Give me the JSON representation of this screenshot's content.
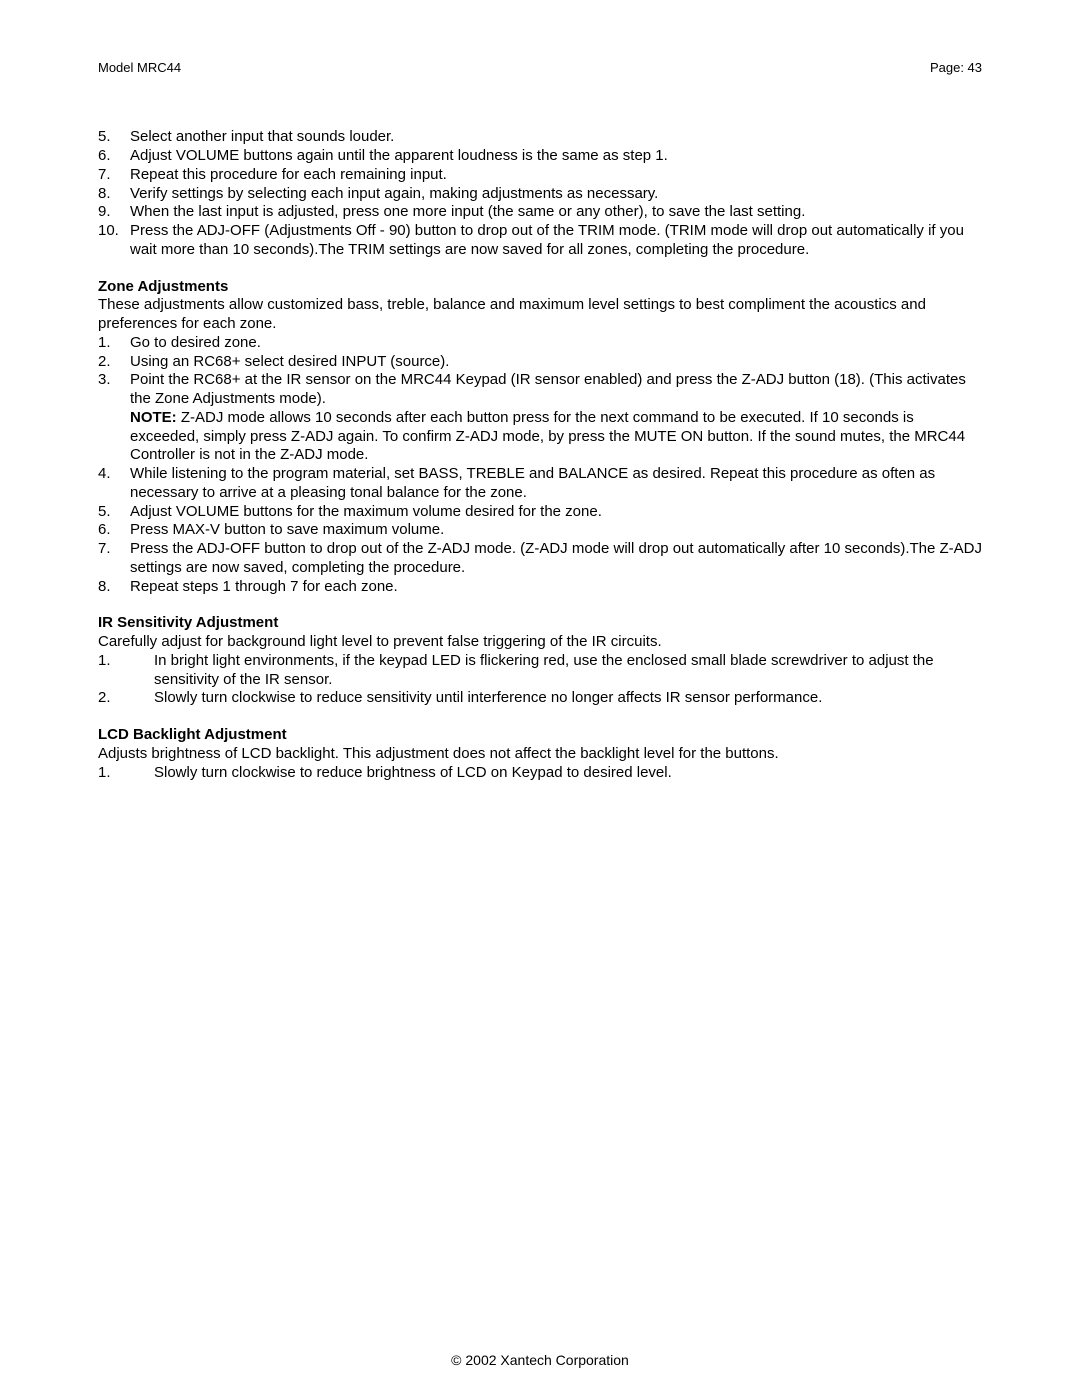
{
  "header": {
    "left": "Model MRC44",
    "right": "Page: 43"
  },
  "topList": {
    "items": [
      {
        "n": "5.",
        "t": "Select another input that sounds louder."
      },
      {
        "n": "6.",
        "t": "Adjust VOLUME buttons again until the apparent loudness is the same as step 1."
      },
      {
        "n": "7.",
        "t": "Repeat this procedure for each remaining input."
      },
      {
        "n": "8.",
        "t": "Verify settings by selecting each input again, making adjustments as necessary."
      },
      {
        "n": "9.",
        "t": "When the last input is adjusted, press one more input (the same or any other), to save the last setting."
      },
      {
        "n": "10.",
        "t": "Press the ADJ-OFF (Adjustments Off - 90) button to drop out of the TRIM mode.  (TRIM mode will drop out automatically if you wait more than 10 seconds).The TRIM settings are now saved for all zones, completing the procedure."
      }
    ]
  },
  "zone": {
    "title": "Zone Adjustments",
    "intro": "These adjustments allow customized bass, treble, balance and maximum level settings to best compliment the acoustics and preferences for each zone.",
    "items": [
      {
        "n": "1.",
        "t": "Go to desired zone."
      },
      {
        "n": "2.",
        "t": "Using an RC68+ select desired INPUT (source)."
      },
      {
        "n": "3.",
        "pre": "Point the RC68+ at the IR sensor on the MRC44 Keypad (IR sensor enabled) and press the Z-ADJ button (18). (This activates the Zone Adjustments mode).",
        "noteLabel": "NOTE:",
        "noteText": " Z-ADJ mode allows 10 seconds after each button press for the next command to be executed.  If 10 seconds is exceeded, simply press Z-ADJ again. To confirm Z-ADJ  mode, by press the MUTE ON button. If the sound mutes, the MRC44 Controller is not in the Z-ADJ  mode."
      },
      {
        "n": "4.",
        "t": "While listening to the program material, set BASS, TREBLE and BALANCE as desired.  Repeat this procedure as often as necessary to arrive at a pleasing tonal balance for the zone."
      },
      {
        "n": "5.",
        "t": "Adjust VOLUME buttons for the maximum volume desired for the zone."
      },
      {
        "n": "6.",
        "t": "Press MAX-V button to save maximum volume."
      },
      {
        "n": "7.",
        "t": "Press the ADJ-OFF button to drop out of the Z-ADJ mode. (Z-ADJ mode will drop out automatically after 10 seconds).The Z-ADJ settings are now saved, completing the procedure."
      },
      {
        "n": "8.",
        "t": "Repeat steps 1 through 7 for each zone."
      }
    ]
  },
  "ir": {
    "title": "IR Sensitivity Adjustment",
    "intro": "Carefully adjust for background light level to prevent false triggering of the IR circuits.",
    "items": [
      {
        "n": "1.",
        "t": "In bright light environments, if the keypad LED is flickering red, use the enclosed small blade screwdriver to adjust the sensitivity of the IR sensor."
      },
      {
        "n": "2.",
        "t": "Slowly turn clockwise to reduce sensitivity until interference no longer affects IR sensor performance."
      }
    ]
  },
  "lcd": {
    "title": "LCD Backlight Adjustment",
    "intro": "Adjusts brightness of LCD backlight. This adjustment does not affect the backlight level for the buttons.",
    "items": [
      {
        "n": "1.",
        "t": "Slowly turn clockwise to reduce brightness of LCD on Keypad to desired level."
      }
    ]
  },
  "footer": "© 2002 Xantech Corporation"
}
